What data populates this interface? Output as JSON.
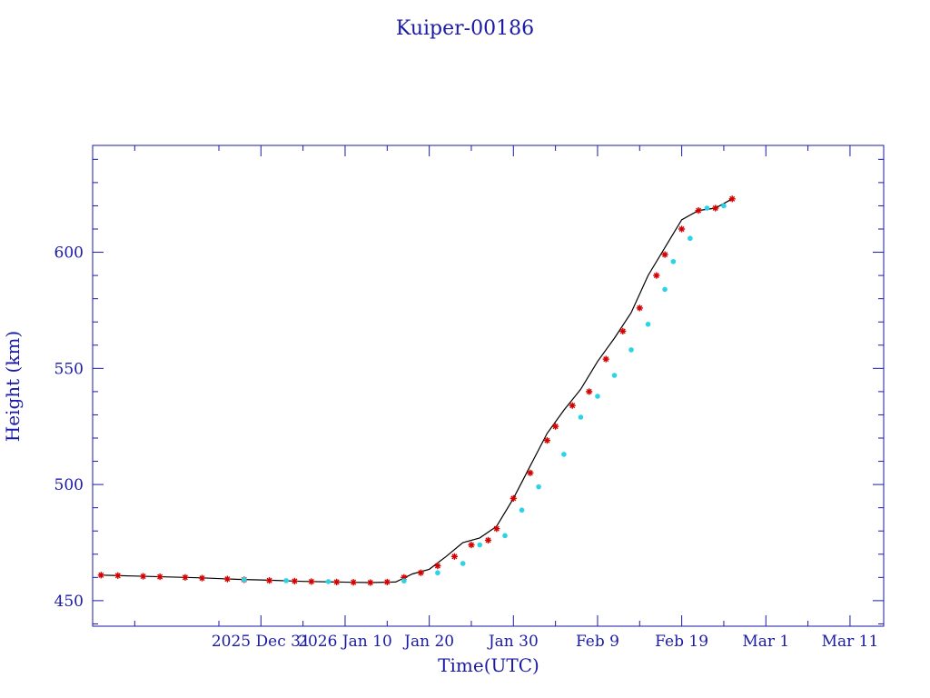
{
  "chart_data": {
    "type": "scatter",
    "title": "Kuiper-00186",
    "xlabel": "Time(UTC)",
    "ylabel": "Height (km)",
    "ylim": [
      439,
      646
    ],
    "xlim": [
      "2025-12-11",
      "2026-03-15"
    ],
    "grid": false,
    "legend": "none",
    "x_ticks": [
      {
        "date": "2025-12-31",
        "label": "2025 Dec 31"
      },
      {
        "date": "2026-01-10",
        "label": "2026 Jan 10"
      },
      {
        "date": "2026-01-20",
        "label": "Jan 20"
      },
      {
        "date": "2026-01-30",
        "label": "Jan 30"
      },
      {
        "date": "2026-02-09",
        "label": "Feb  9"
      },
      {
        "date": "2026-02-19",
        "label": "Feb 19"
      },
      {
        "date": "2026-03-01",
        "label": "Mar  1"
      },
      {
        "date": "2026-03-11",
        "label": "Mar 11"
      }
    ],
    "y_ticks": [
      450,
      500,
      550,
      600
    ],
    "series": [
      {
        "color": "#000000",
        "marker": "line",
        "x": [
          "2025-12-12",
          "2025-12-16",
          "2025-12-20",
          "2025-12-24",
          "2025-12-28",
          "2026-01-01",
          "2026-01-05",
          "2026-01-09",
          "2026-01-13",
          "2026-01-16",
          "2026-01-18",
          "2026-01-20",
          "2026-01-22",
          "2026-01-24",
          "2026-01-26",
          "2026-01-28",
          "2026-01-30",
          "2026-02-01",
          "2026-02-03",
          "2026-02-05",
          "2026-02-07",
          "2026-02-09",
          "2026-02-11",
          "2026-02-13",
          "2026-02-15",
          "2026-02-17",
          "2026-02-19",
          "2026-02-21",
          "2026-02-23",
          "2026-02-25"
        ],
        "y": [
          461,
          460.6,
          460.2,
          459.8,
          459.2,
          458.8,
          458.3,
          458,
          457.8,
          458,
          461.5,
          463.5,
          469,
          475,
          477,
          482,
          494,
          508,
          522,
          532,
          541,
          553,
          563,
          574,
          590,
          602,
          614,
          618,
          619,
          623
        ]
      },
      {
        "color": "#d40000",
        "marker": "star",
        "x": [
          "2025-12-12",
          "2025-12-14",
          "2025-12-17",
          "2025-12-19",
          "2025-12-22",
          "2025-12-24",
          "2025-12-27",
          "2025-12-29",
          "2026-01-01",
          "2026-01-04",
          "2026-01-06",
          "2026-01-09",
          "2026-01-11",
          "2026-01-13",
          "2026-01-15",
          "2026-01-17",
          "2026-01-19",
          "2026-01-21",
          "2026-01-23",
          "2026-01-25",
          "2026-01-27",
          "2026-01-28",
          "2026-01-30",
          "2026-02-01",
          "2026-02-03",
          "2026-02-04",
          "2026-02-06",
          "2026-02-08",
          "2026-02-10",
          "2026-02-12",
          "2026-02-14",
          "2026-02-16",
          "2026-02-17",
          "2026-02-19",
          "2026-02-21",
          "2026-02-23",
          "2026-02-25"
        ],
        "y": [
          461,
          460.8,
          460.5,
          460.3,
          460,
          459.7,
          459.3,
          459,
          458.7,
          458.4,
          458.2,
          458,
          457.9,
          457.8,
          458,
          460,
          462,
          465,
          469,
          474,
          476,
          481,
          494,
          505,
          519,
          525,
          534,
          540,
          554,
          566,
          576,
          590,
          599,
          610,
          618,
          619,
          623
        ]
      },
      {
        "color": "#2ad4e6",
        "marker": "dot",
        "x": [
          "2025-12-29",
          "2026-01-03",
          "2026-01-08",
          "2026-01-17",
          "2026-01-21",
          "2026-01-24",
          "2026-01-26",
          "2026-01-29",
          "2026-01-31",
          "2026-02-02",
          "2026-02-05",
          "2026-02-07",
          "2026-02-09",
          "2026-02-11",
          "2026-02-13",
          "2026-02-15",
          "2026-02-17",
          "2026-02-18",
          "2026-02-20",
          "2026-02-22",
          "2026-02-24"
        ],
        "y": [
          459,
          458.6,
          458.2,
          458.5,
          462,
          466,
          474,
          478,
          489,
          499,
          513,
          529,
          538,
          547,
          558,
          569,
          584,
          596,
          606,
          619,
          620
        ]
      }
    ]
  }
}
